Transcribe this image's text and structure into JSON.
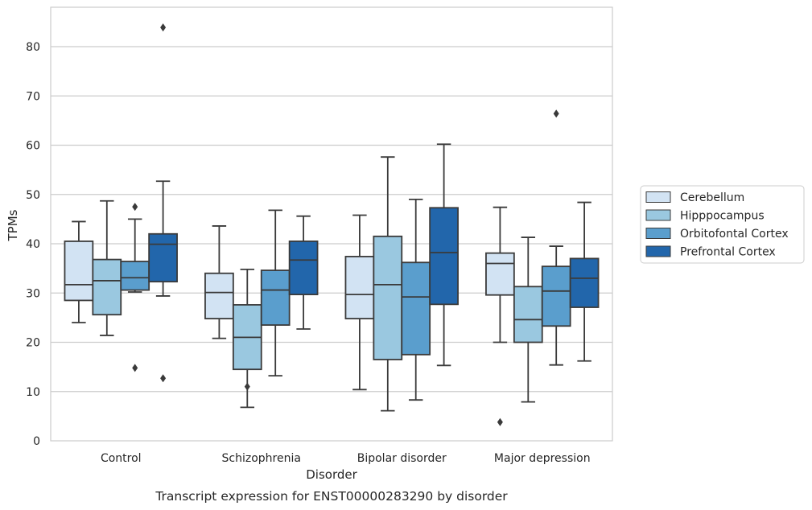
{
  "chart_data": {
    "type": "box",
    "xlabel": "Disorder",
    "ylabel": "TPMs",
    "caption": "Transcript expression for ENST00000283290 by disorder",
    "ylim": [
      0,
      88
    ],
    "yticks": [
      0,
      10,
      20,
      30,
      40,
      50,
      60,
      70,
      80
    ],
    "grid": "horizontal",
    "legend_position": "right",
    "categories": [
      "Control",
      "Schizophrenia",
      "Bipolar disorder",
      "Major depression"
    ],
    "series": [
      {
        "name": "Cerebellum",
        "color": "#d2e3f3",
        "boxes": [
          {
            "min": 24,
            "q1": 28.5,
            "median": 31.7,
            "q3": 40.5,
            "max": 44.5,
            "outliers": []
          },
          {
            "min": 20.8,
            "q1": 24.8,
            "median": 30.1,
            "q3": 34,
            "max": 43.6,
            "outliers": []
          },
          {
            "min": 10.4,
            "q1": 24.8,
            "median": 29.7,
            "q3": 37.4,
            "max": 45.8,
            "outliers": []
          },
          {
            "min": 20,
            "q1": 29.6,
            "median": 36,
            "q3": 38.1,
            "max": 47.4,
            "outliers": [
              3.8
            ]
          }
        ]
      },
      {
        "name": "Hipppocampus",
        "color": "#9ac8e0",
        "boxes": [
          {
            "min": 21.4,
            "q1": 25.6,
            "median": 32.5,
            "q3": 36.8,
            "max": 48.7,
            "outliers": []
          },
          {
            "min": 6.8,
            "q1": 14.5,
            "median": 21,
            "q3": 27.6,
            "max": 34.8,
            "outliers": [
              11
            ]
          },
          {
            "min": 6.1,
            "q1": 16.5,
            "median": 31.7,
            "q3": 41.5,
            "max": 57.6,
            "outliers": []
          },
          {
            "min": 7.9,
            "q1": 20,
            "median": 24.6,
            "q3": 31.3,
            "max": 41.3,
            "outliers": []
          }
        ]
      },
      {
        "name": "Orbitofontal Cortex",
        "color": "#5a9ecd",
        "boxes": [
          {
            "min": 30.2,
            "q1": 30.6,
            "median": 33.1,
            "q3": 36.4,
            "max": 45,
            "outliers": [
              47.5,
              14.8
            ]
          },
          {
            "min": 13.2,
            "q1": 23.5,
            "median": 30.6,
            "q3": 34.6,
            "max": 46.8,
            "outliers": []
          },
          {
            "min": 8.3,
            "q1": 17.5,
            "median": 29.2,
            "q3": 36.2,
            "max": 49,
            "outliers": []
          },
          {
            "min": 15.4,
            "q1": 23.3,
            "median": 30.4,
            "q3": 35.4,
            "max": 39.5,
            "outliers": [
              66.4
            ]
          }
        ]
      },
      {
        "name": "Prefrontal Cortex",
        "color": "#2266ab",
        "boxes": [
          {
            "min": 29.4,
            "q1": 32.3,
            "median": 39.9,
            "q3": 42,
            "max": 52.7,
            "outliers": [
              83.9,
              12.7
            ]
          },
          {
            "min": 22.7,
            "q1": 29.7,
            "median": 36.7,
            "q3": 40.5,
            "max": 45.6,
            "outliers": []
          },
          {
            "min": 15.3,
            "q1": 27.7,
            "median": 38.2,
            "q3": 47.3,
            "max": 60.2,
            "outliers": []
          },
          {
            "min": 16.2,
            "q1": 27.1,
            "median": 33,
            "q3": 37,
            "max": 48.4,
            "outliers": []
          }
        ]
      }
    ]
  }
}
